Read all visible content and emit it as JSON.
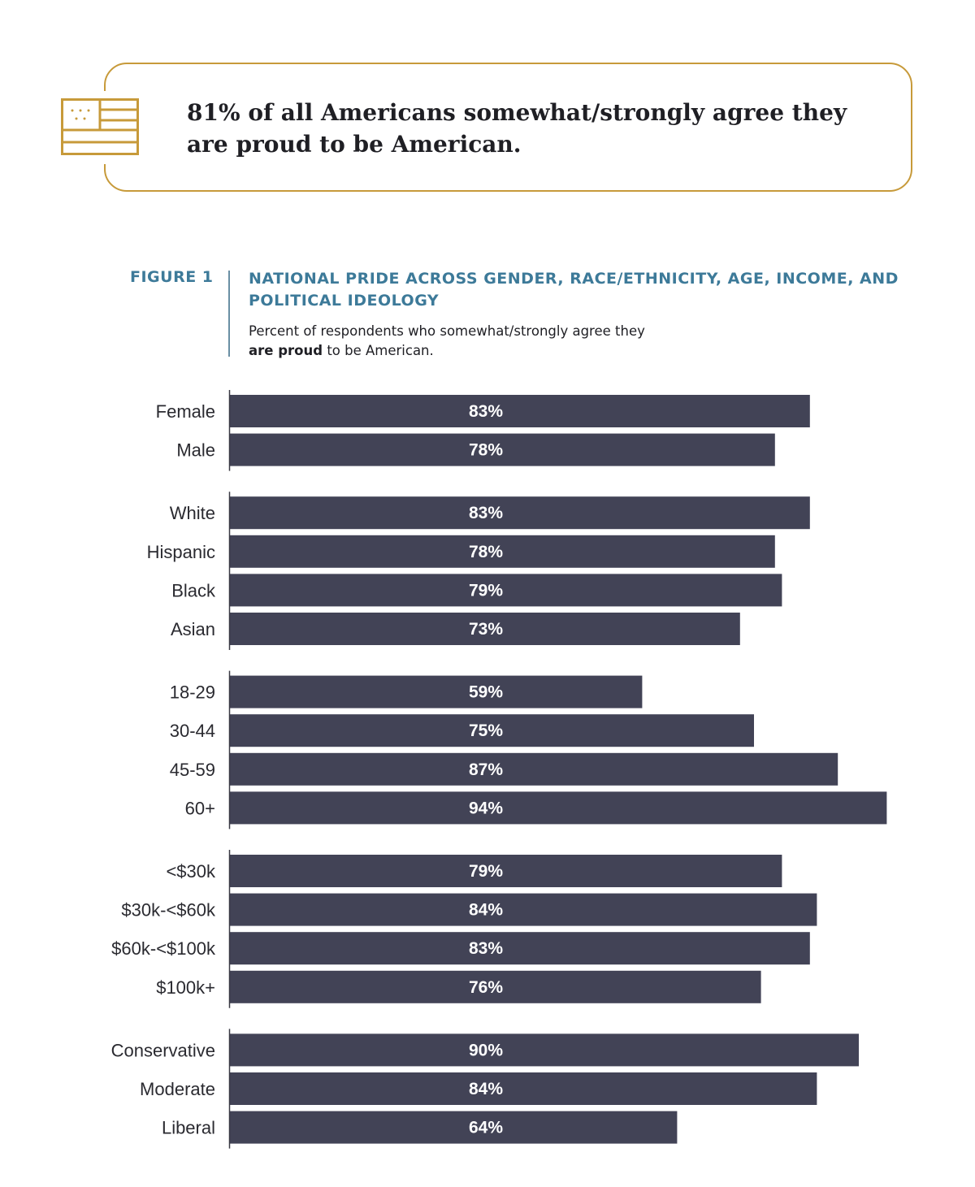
{
  "callout": {
    "icon": "american-flag-icon",
    "text": "81% of all Americans somewhat/strongly agree they are proud to be American.",
    "accent_color": "#c79a3a"
  },
  "figure": {
    "label": "FIGURE 1",
    "title": "NATIONAL PRIDE ACROSS GENDER, RACE/ETHNICITY, AGE, INCOME, AND POLITICAL IDEOLOGY",
    "subtitle_pre": "Percent of respondents who somewhat/strongly agree they",
    "subtitle_bold": "are proud",
    "subtitle_post": "to be American."
  },
  "chart_data": {
    "type": "bar",
    "orientation": "horizontal",
    "xlim": [
      0,
      100
    ],
    "value_suffix": "%",
    "bar_color": "#424356",
    "groups": [
      {
        "categories": [
          "Female",
          "Male"
        ],
        "values": [
          83,
          78
        ]
      },
      {
        "categories": [
          "White",
          "Hispanic",
          "Black",
          "Asian"
        ],
        "values": [
          83,
          78,
          79,
          73
        ]
      },
      {
        "categories": [
          "18-29",
          "30-44",
          "45-59",
          "60+"
        ],
        "values": [
          59,
          75,
          87,
          94
        ]
      },
      {
        "categories": [
          "<$30k",
          "$30k-<$60k",
          "$60k-<$100k",
          "$100k+"
        ],
        "values": [
          79,
          84,
          83,
          76
        ]
      },
      {
        "categories": [
          "Conservative",
          "Moderate",
          "Liberal"
        ],
        "values": [
          90,
          84,
          64
        ]
      }
    ]
  }
}
